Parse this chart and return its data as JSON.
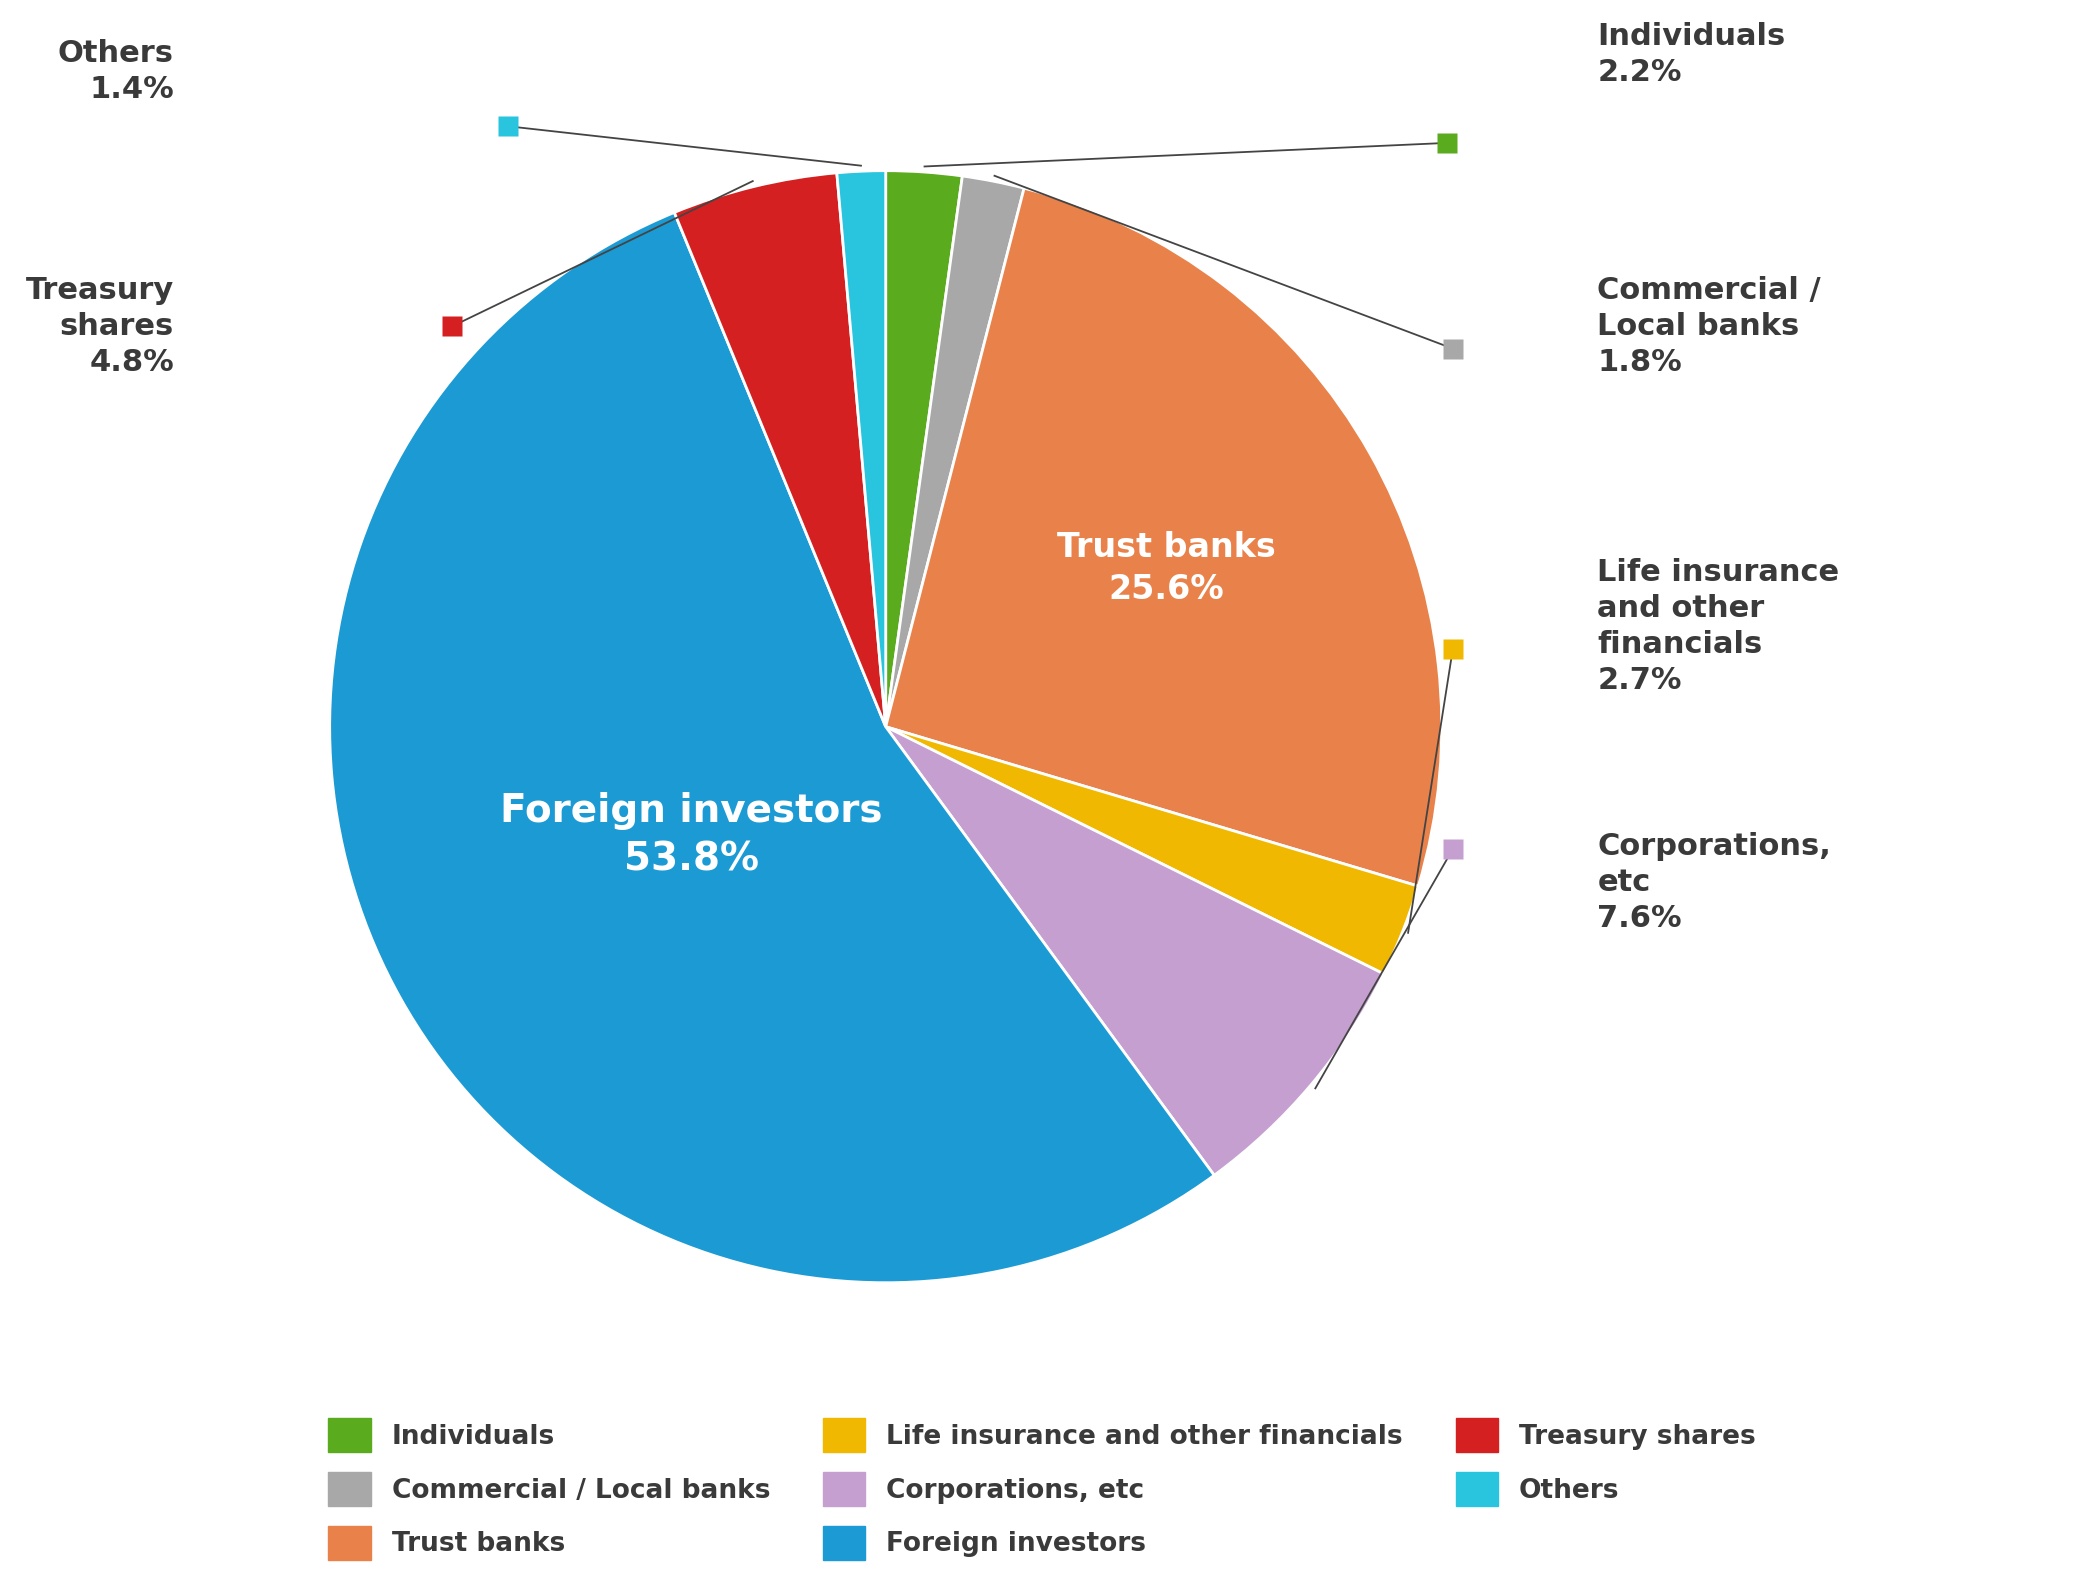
{
  "slices": [
    {
      "label": "Individuals",
      "value": 2.2,
      "color": "#5aab1e"
    },
    {
      "label": "Commercial / Local banks",
      "value": 1.8,
      "color": "#a8a8a8"
    },
    {
      "label": "Trust banks",
      "value": 25.6,
      "color": "#e8824a"
    },
    {
      "label": "Life insurance and other financials",
      "value": 2.7,
      "color": "#f0b800"
    },
    {
      "label": "Corporations, etc",
      "value": 7.6,
      "color": "#c49fd0"
    },
    {
      "label": "Foreign investors",
      "value": 53.8,
      "color": "#1b9ad4"
    },
    {
      "label": "Treasury shares",
      "value": 4.8,
      "color": "#d42020"
    },
    {
      "label": "Others",
      "value": 1.4,
      "color": "#29c4dd"
    }
  ],
  "background_color": "#ffffff",
  "legend_background": "#efefef",
  "line_color": "#444444",
  "text_color": "#3a3a3a",
  "label_fontsize": 22,
  "inner_label_fontsize": 24,
  "legend_fontsize": 19,
  "legend_order": [
    0,
    1,
    2,
    3,
    4,
    5,
    6,
    7
  ]
}
